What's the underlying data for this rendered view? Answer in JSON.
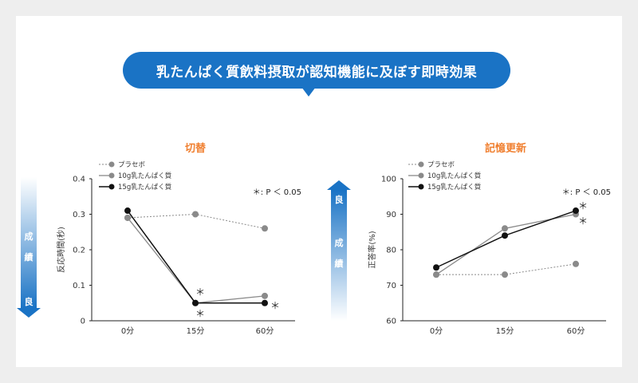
{
  "banner": {
    "title": "乳たんぱく質飲料摂取が認知機能に及ぼす即時効果"
  },
  "colors": {
    "banner": "#1a73c5",
    "chart_title": "#f07f2f",
    "placebo": "#888888",
    "g10": "#8a8a8a",
    "g15": "#111111"
  },
  "chart_data": [
    {
      "type": "line",
      "title": "切替",
      "categories": [
        "0分",
        "15分",
        "60分"
      ],
      "ylabel": "反応時間(秒)",
      "ylim": [
        0,
        0.4
      ],
      "yticks": [
        "0",
        "0.1",
        "0.2",
        "0.3",
        "0.4"
      ],
      "annotation": "＊: P ＜ 0.05",
      "side_arrow": {
        "direction": "down",
        "text_top": "成績",
        "text_end": "良"
      },
      "series": [
        {
          "name": "プラセボ",
          "values": [
            0.29,
            0.3,
            0.26
          ],
          "style": "dotted"
        },
        {
          "name": "10g乳たんぱく質",
          "values": [
            0.29,
            0.05,
            0.07
          ],
          "style": "solid-gray"
        },
        {
          "name": "15g乳たんぱく質",
          "values": [
            0.31,
            0.05,
            0.05
          ],
          "style": "solid-black"
        }
      ],
      "significance_marks": [
        "＊",
        "＊",
        "＊"
      ]
    },
    {
      "type": "line",
      "title": "記憶更新",
      "categories": [
        "0分",
        "15分",
        "60分"
      ],
      "ylabel": "正答率(%)",
      "ylim": [
        60,
        100
      ],
      "yticks": [
        "60",
        "70",
        "80",
        "90",
        "100"
      ],
      "annotation": "＊: P ＜ 0.05",
      "side_arrow": {
        "direction": "up",
        "text_top": "良",
        "text_end": "成績"
      },
      "series": [
        {
          "name": "プラセボ",
          "values": [
            73,
            73,
            76
          ],
          "style": "dotted"
        },
        {
          "name": "10g乳たんぱく質",
          "values": [
            73,
            86,
            90
          ],
          "style": "solid-gray"
        },
        {
          "name": "15g乳たんぱく質",
          "values": [
            75,
            84,
            91
          ],
          "style": "solid-black"
        }
      ],
      "significance_marks": [
        "＊",
        "＊"
      ]
    }
  ]
}
